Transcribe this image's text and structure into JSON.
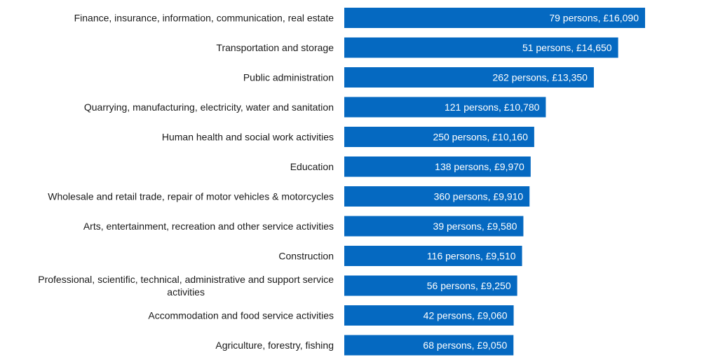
{
  "colors": {
    "bar": "#0569c1",
    "text": "#1a1a1a",
    "value_text": "#ffffff"
  },
  "chart_data": {
    "type": "bar",
    "orientation": "horizontal",
    "title": "",
    "xlabel": "",
    "ylabel": "",
    "categories": [
      "Finance, insurance, information, communication, real estate",
      "Transportation and storage",
      "Public administration",
      "Quarrying, manufacturing, electricity, water and sanitation",
      "Human health and social work activities",
      "Education",
      "Wholesale and retail trade, repair of motor vehicles & motorcycles",
      "Arts, entertainment, recreation and other service activities",
      "Construction",
      "Professional, scientific, technical, administrative and support service activities",
      "Accommodation and food service activities",
      "Agriculture, forestry, fishing"
    ],
    "category_label_lines": [
      [
        "Finance, insurance, information, communication, real estate"
      ],
      [
        "Transportation and storage"
      ],
      [
        "Public administration"
      ],
      [
        "Quarrying, manufacturing, electricity, water and sanitation"
      ],
      [
        "Human health and social work activities"
      ],
      [
        "Education"
      ],
      [
        "Wholesale and retail trade, repair of motor vehicles & motorcycles"
      ],
      [
        "Arts, entertainment, recreation and other service activities"
      ],
      [
        "Construction"
      ],
      [
        "Professional, scientific, technical, administrative and support service",
        "activities"
      ],
      [
        "Accommodation and food service activities"
      ],
      [
        "Agriculture, forestry, fishing"
      ]
    ],
    "values": [
      16090,
      14650,
      13350,
      10780,
      10160,
      9970,
      9910,
      9580,
      9510,
      9250,
      9060,
      9050
    ],
    "persons": [
      79,
      51,
      262,
      121,
      250,
      138,
      360,
      39,
      116,
      56,
      42,
      68
    ],
    "data_labels": [
      "79 persons, £16,090",
      "51 persons, £14,650",
      "262 persons, £13,350",
      "121 persons, £10,780",
      "250 persons, £10,160",
      "138 persons, £9,970",
      "360 persons, £9,910",
      "39 persons, £9,580",
      "116 persons, £9,510",
      "56 persons, £9,250",
      "42 persons, £9,060",
      "68 persons, £9,050"
    ],
    "xlim": [
      0,
      20000
    ],
    "grid": false,
    "legend": "none",
    "axes_visible": false
  }
}
